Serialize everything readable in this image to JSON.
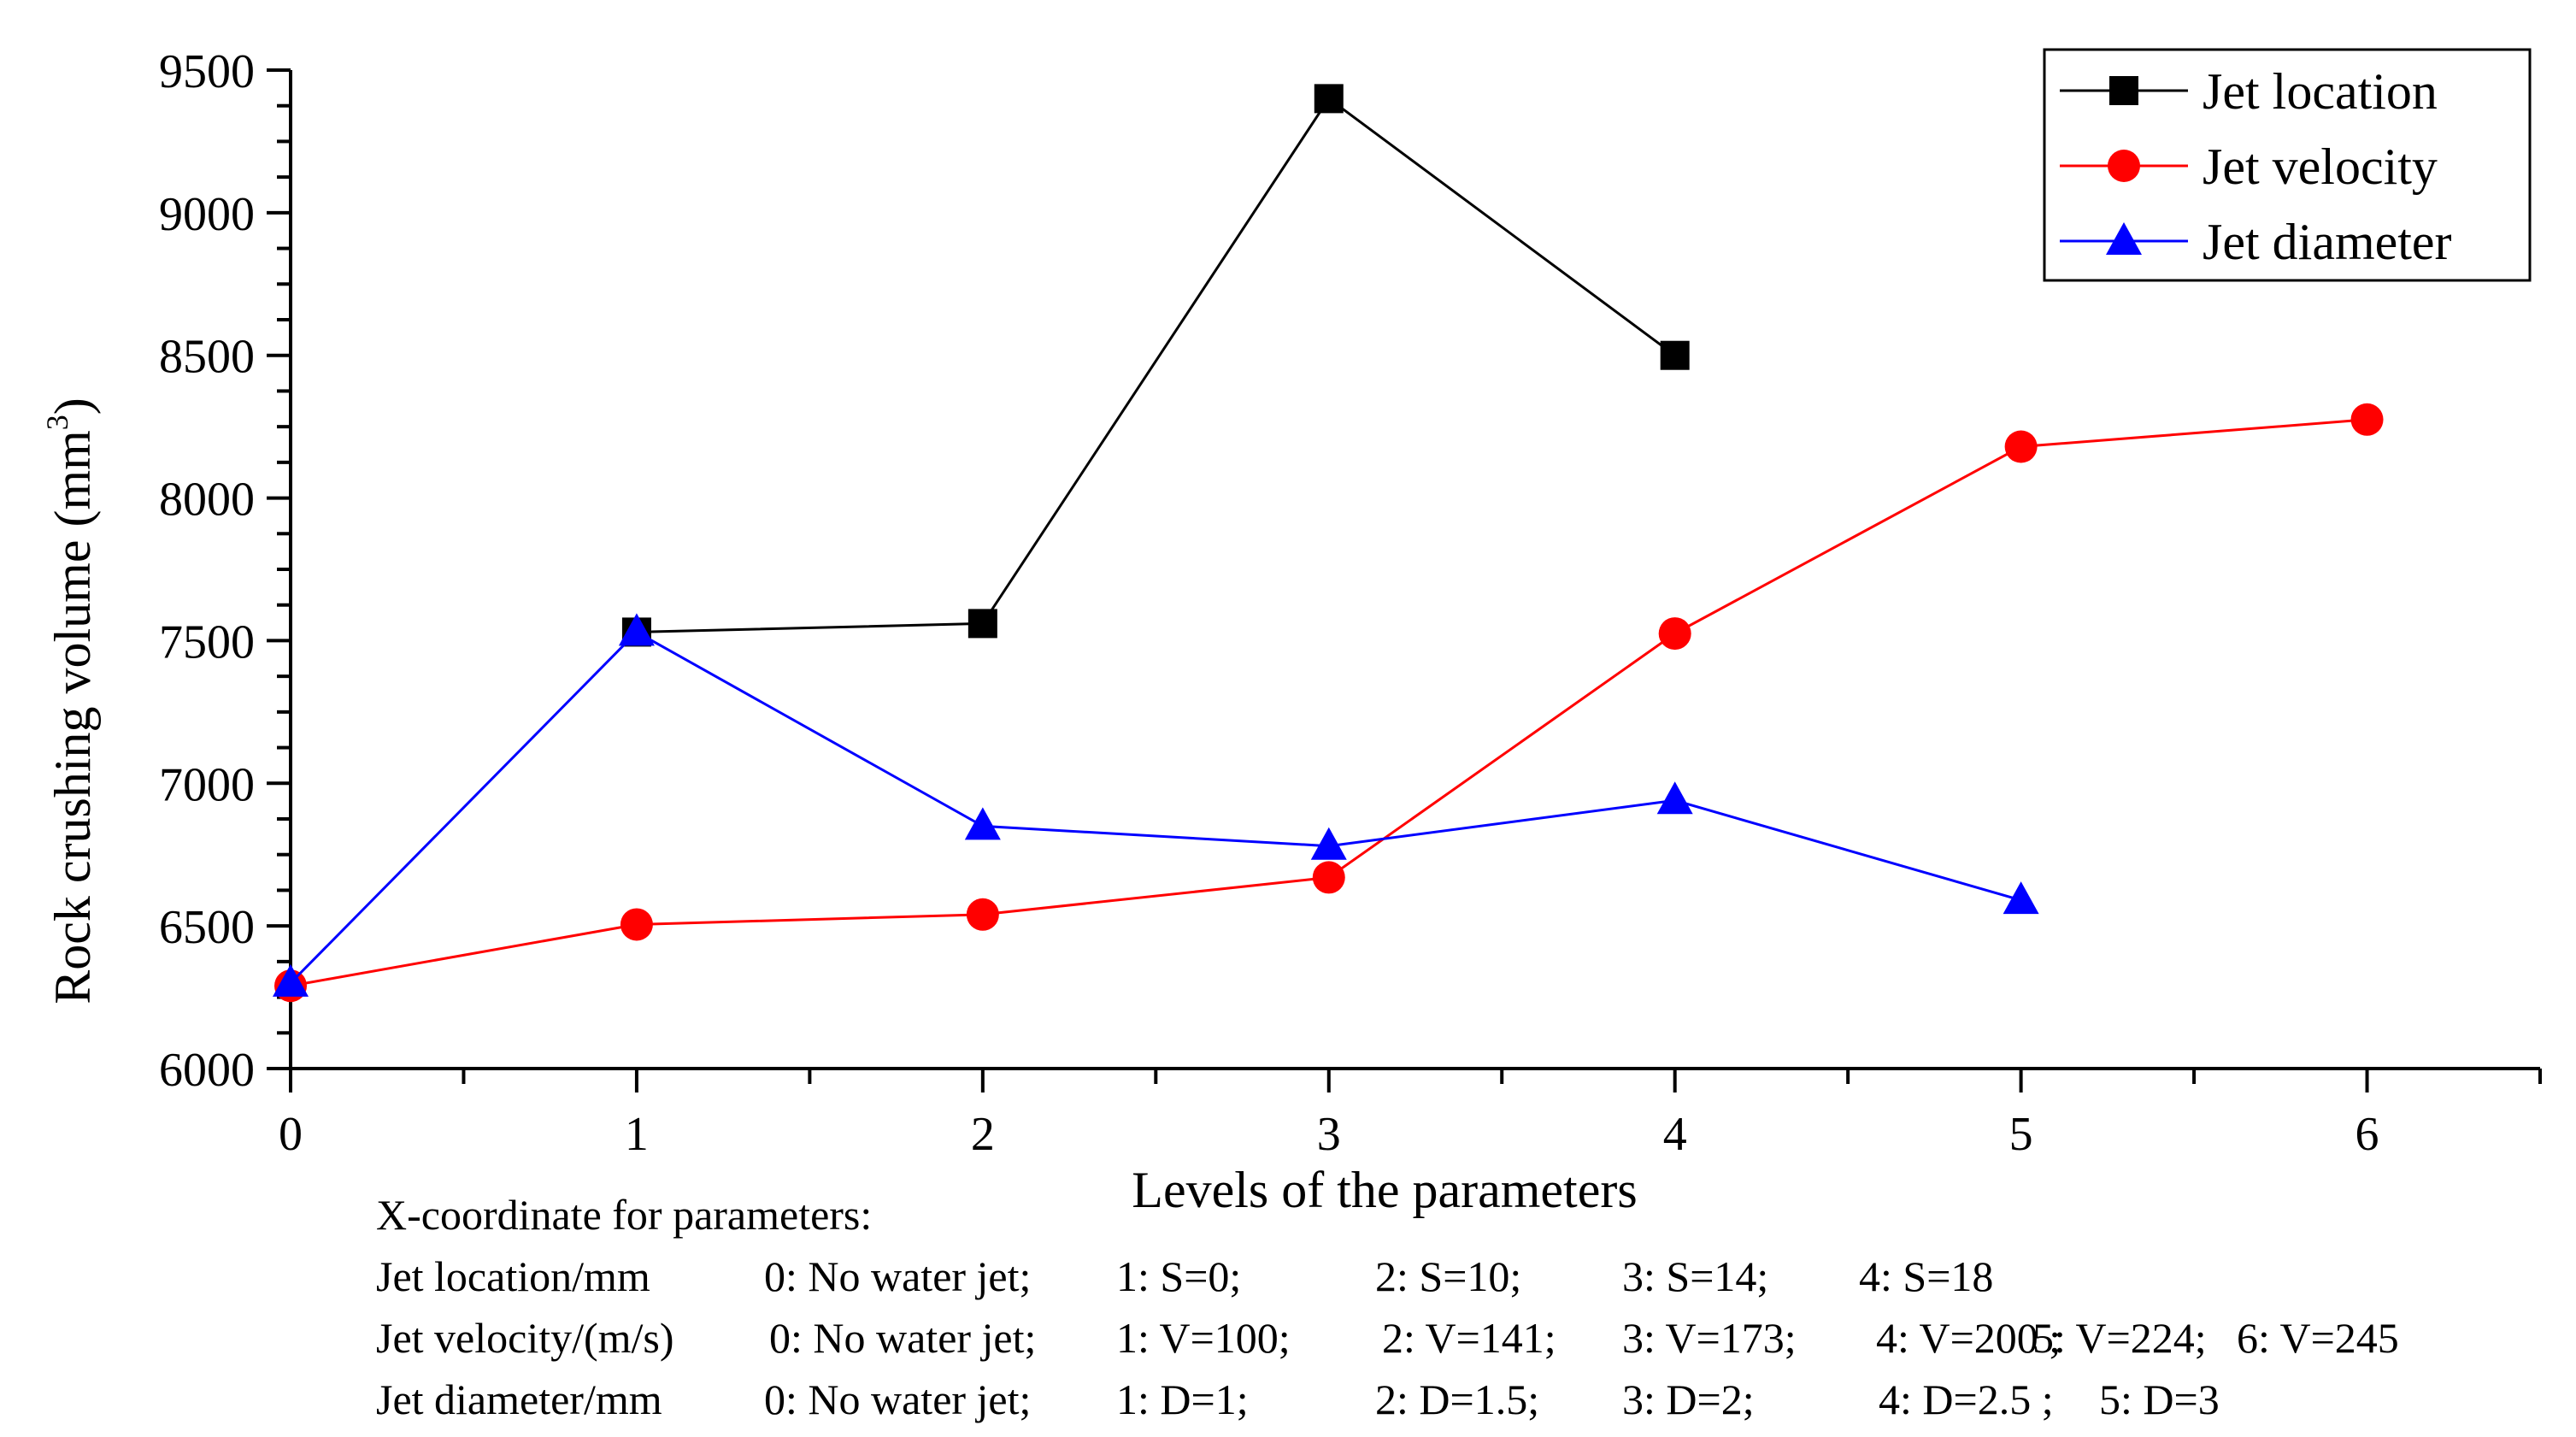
{
  "chart_data": {
    "type": "line",
    "title": "",
    "xlabel": "Levels of the parameters",
    "ylabel_main": "Rock crushing volume (mm",
    "ylabel_sup": "3",
    "ylabel_close": ")",
    "xlim": [
      0,
      6.5
    ],
    "ylim": [
      6000,
      9500
    ],
    "x_ticks": [
      "0",
      "1",
      "2",
      "3",
      "4",
      "5",
      "6"
    ],
    "y_ticks": [
      "6000",
      "6500",
      "7000",
      "7500",
      "8000",
      "8500",
      "9000",
      "9500"
    ],
    "legend_position": "top-right",
    "series": [
      {
        "name": "Jet location",
        "color": "#000000",
        "marker": "square",
        "x": [
          1,
          2,
          3,
          4
        ],
        "values": [
          7530,
          7560,
          9400,
          8500
        ]
      },
      {
        "name": "Jet velocity",
        "color": "#ff0000",
        "marker": "circle",
        "x": [
          0,
          1,
          2,
          3,
          4,
          5,
          6
        ],
        "values": [
          6290,
          6505,
          6540,
          6670,
          7525,
          8180,
          8275
        ]
      },
      {
        "name": "Jet diameter",
        "color": "#0000ff",
        "marker": "triangle",
        "x": [
          0,
          1,
          2,
          3,
          4,
          5
        ],
        "values": [
          6300,
          7530,
          6850,
          6780,
          6940,
          6590
        ]
      }
    ]
  },
  "notes": {
    "heading": "X-coordinate for parameters:",
    "rows": [
      {
        "label": "Jet location/mm",
        "items": [
          "0: No water jet;",
          "1: S=0;",
          "2: S=10;",
          "3: S=14;",
          "4: S=18"
        ]
      },
      {
        "label": "Jet velocity/(m/s)",
        "items": [
          "0: No water jet;",
          "1: V=100;",
          "2: V=141;",
          "3: V=173;",
          "4: V=200 ;",
          "5: V=224;",
          "6: V=245"
        ]
      },
      {
        "label": "Jet diameter/mm",
        "items": [
          "0: No water jet;",
          "1: D=1;",
          "2: D=1.5;",
          "3: D=2;",
          "4: D=2.5 ;",
          "5: D=3"
        ]
      }
    ]
  }
}
